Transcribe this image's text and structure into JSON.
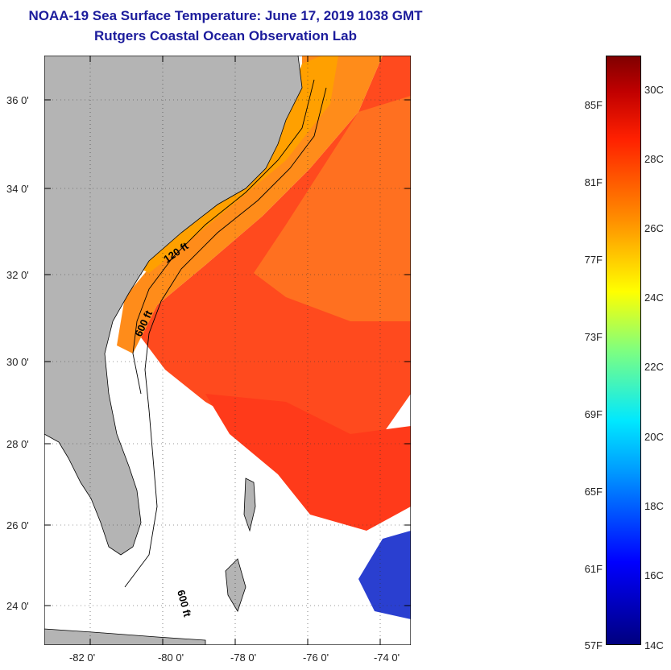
{
  "title": {
    "line1": "NOAA-19 Sea Surface Temperature:  June 17, 2019 1038 GMT",
    "line2": "Rutgers Coastal Ocean Observation Lab"
  },
  "axes": {
    "lat_labels": [
      "36 0'",
      "34 0'",
      "32 0'",
      "30 0'",
      "28 0'",
      "26 0'",
      "24 0'"
    ],
    "lon_labels": [
      "-82 0'",
      "-80 0'",
      "-78 0'",
      "-76 0'",
      "-74 0'"
    ]
  },
  "contours": {
    "label_120": "120 ft",
    "label_600": "600 ft",
    "label_600b": "600 ft"
  },
  "colorbar": {
    "fahrenheit": [
      "85F",
      "81F",
      "77F",
      "73F",
      "69F",
      "65F",
      "61F",
      "57F"
    ],
    "celsius": [
      "30C",
      "28C",
      "26C",
      "24C",
      "22C",
      "20C",
      "18C",
      "16C",
      "14C"
    ]
  },
  "colors": {
    "title": "#1c1c9c",
    "land": "#b4b4b4",
    "gulf_stream": "#ff4020",
    "shelf": "#ff8c1a",
    "cloud": "#ffffff"
  }
}
